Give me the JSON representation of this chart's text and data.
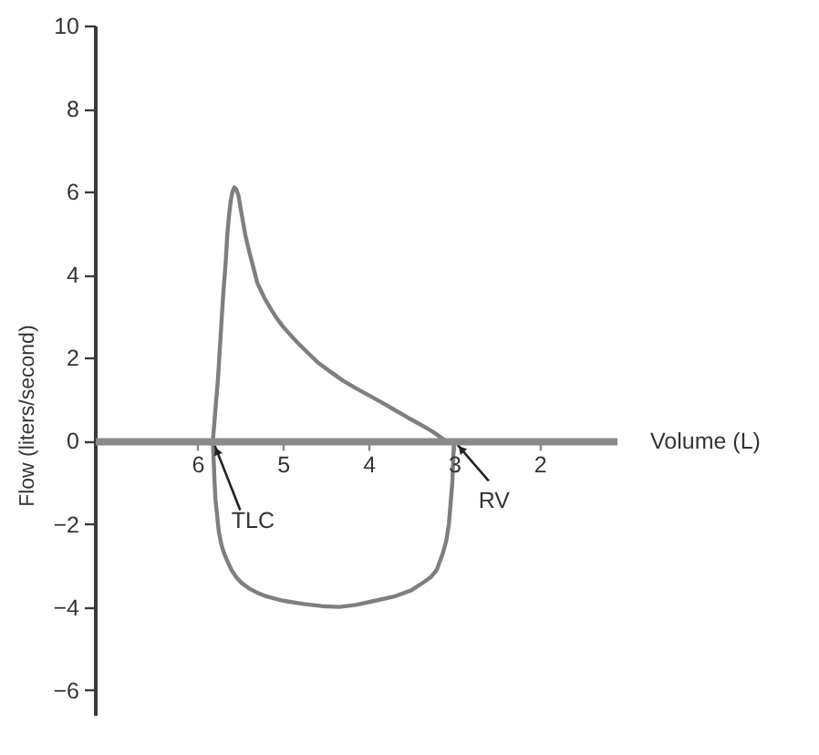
{
  "chart_data": {
    "type": "line",
    "xlabel": "Volume (L)",
    "ylabel": "Flow (liters/second)",
    "xlim": [
      7.2,
      1.1
    ],
    "ylim": [
      -6.6,
      10
    ],
    "xticks": [
      6,
      5,
      4,
      3,
      2
    ],
    "yticks": [
      -6,
      -4,
      -2,
      0,
      2,
      4,
      6,
      8,
      10
    ],
    "series": [
      {
        "color": "#7f7f7f",
        "x": [
          3.0,
          3.01,
          3.02,
          3.04,
          3.06,
          3.09,
          3.13,
          3.2,
          3.27,
          3.35,
          3.5,
          3.7,
          3.92,
          4.15,
          4.34,
          4.55,
          4.76,
          5.0,
          5.19,
          5.3,
          5.4,
          5.48,
          5.54,
          5.6,
          5.65,
          5.69,
          5.72,
          5.75,
          5.77,
          5.79,
          5.8,
          5.81,
          5.82,
          5.79,
          5.76,
          5.73,
          5.7,
          5.67,
          5.65,
          5.63,
          5.61,
          5.59,
          5.57,
          5.545,
          5.52,
          5.5,
          5.47,
          5.44,
          5.4,
          5.35,
          5.3,
          5.22,
          5.15,
          5.08,
          5.0,
          4.9,
          4.8,
          4.7,
          4.6,
          4.45,
          4.3,
          4.15,
          4.0,
          3.85,
          3.7,
          3.55,
          3.4,
          3.25,
          3.12
        ],
        "values": [
          0,
          -0.5,
          -1.0,
          -1.5,
          -2.0,
          -2.4,
          -2.7,
          -3.1,
          -3.28,
          -3.4,
          -3.6,
          -3.75,
          -3.85,
          -3.95,
          -4.0,
          -3.98,
          -3.93,
          -3.85,
          -3.75,
          -3.66,
          -3.55,
          -3.43,
          -3.3,
          -3.12,
          -2.9,
          -2.7,
          -2.5,
          -2.2,
          -1.8,
          -1.4,
          -1.0,
          -0.5,
          0,
          0.75,
          1.5,
          2.5,
          3.5,
          4.3,
          5.0,
          5.45,
          5.8,
          6.0,
          6.1,
          6.05,
          5.9,
          5.65,
          5.3,
          4.95,
          4.6,
          4.2,
          3.8,
          3.45,
          3.2,
          2.97,
          2.75,
          2.52,
          2.3,
          2.1,
          1.9,
          1.67,
          1.45,
          1.27,
          1.1,
          0.93,
          0.75,
          0.57,
          0.4,
          0.22,
          0.03
        ]
      }
    ],
    "annotations": [
      {
        "text": "TLC",
        "x": 5.82,
        "y": 0
      },
      {
        "text": "RV",
        "x": 3.0,
        "y": 0
      }
    ]
  }
}
